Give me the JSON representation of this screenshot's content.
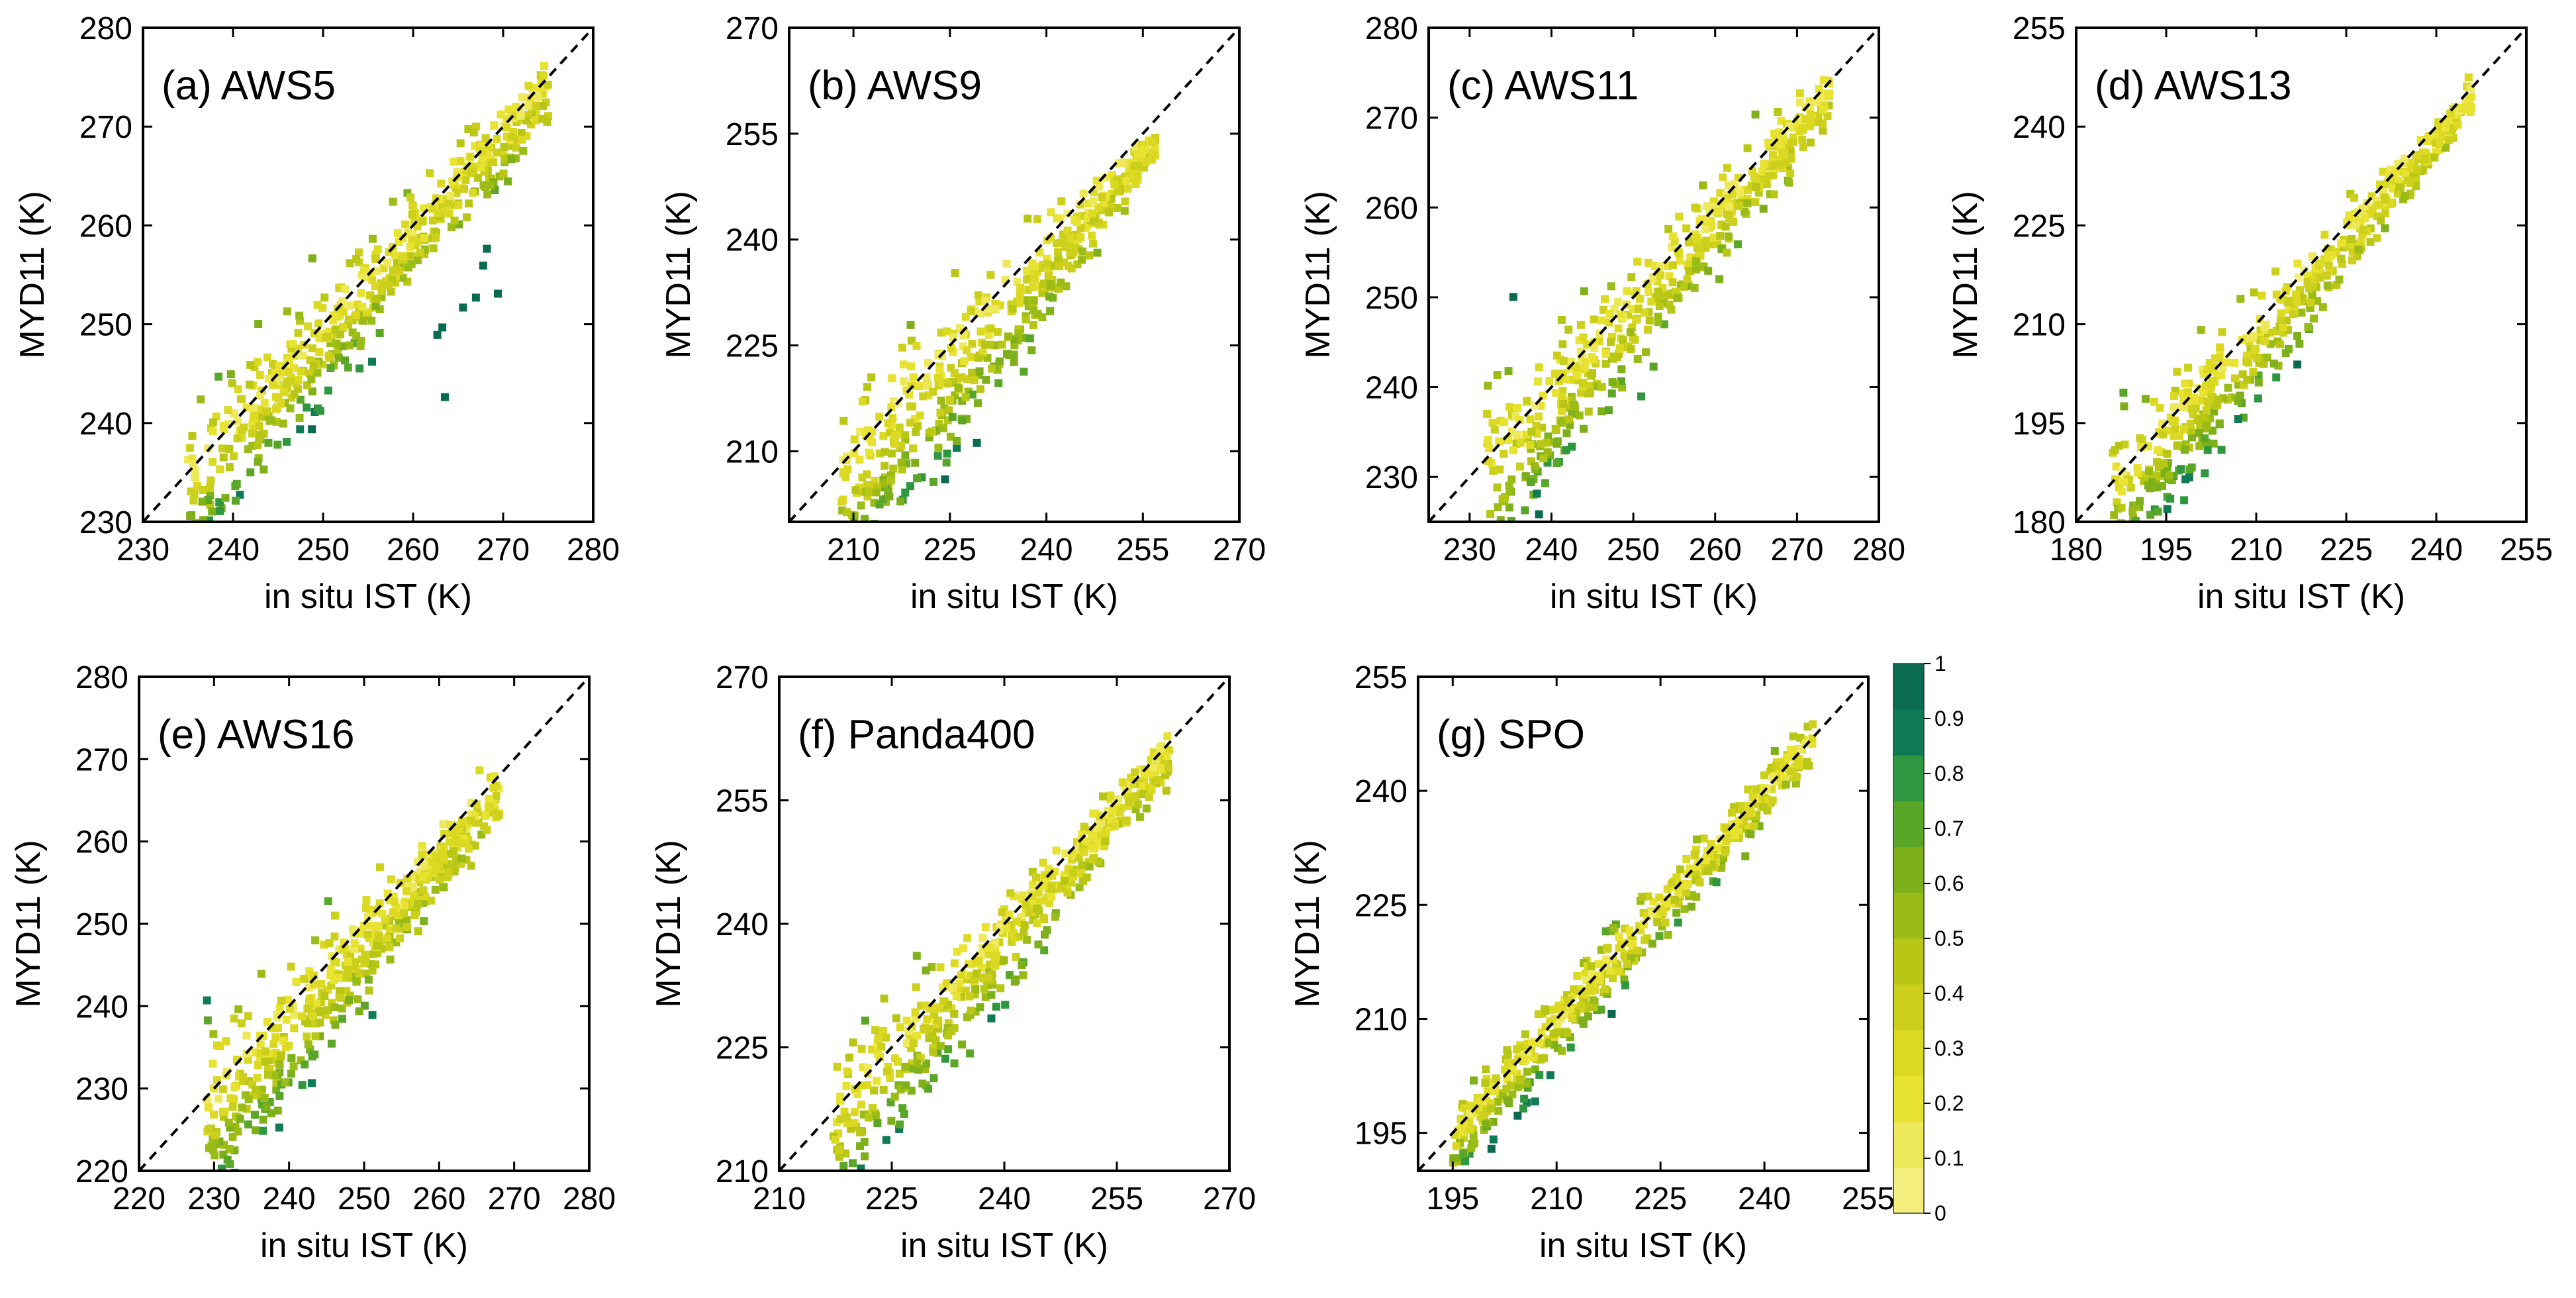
{
  "chart_data": [
    {
      "type": "scatter",
      "title": "(a) AWS5",
      "xlabel": "in situ IST (K)",
      "ylabel": "MYD11 (K)",
      "xlim": [
        230,
        280
      ],
      "ylim": [
        230,
        280
      ],
      "xticks": [
        230,
        240,
        250,
        260,
        270,
        280
      ],
      "yticks": [
        230,
        240,
        250,
        260,
        270,
        280
      ],
      "reference_line": "1:1",
      "color_variable_range": [
        0,
        1
      ],
      "points_summary": {
        "x_range": [
          235,
          275
        ],
        "y_range": [
          232,
          273
        ],
        "bias": -2,
        "n_outliers": 8
      }
    },
    {
      "type": "scatter",
      "title": "(b) AWS9",
      "xlabel": "in situ IST (K)",
      "ylabel": "MYD11 (K)",
      "xlim": [
        200,
        270
      ],
      "ylim": [
        200,
        270
      ],
      "xticks": [
        210,
        225,
        240,
        255,
        270
      ],
      "yticks": [
        210,
        225,
        240,
        255,
        270
      ],
      "reference_line": "1:1",
      "color_variable_range": [
        0,
        1
      ],
      "points_summary": {
        "x_range": [
          208,
          257
        ],
        "y_range": [
          202,
          258
        ],
        "bias": -6
      }
    },
    {
      "type": "scatter",
      "title": "(c) AWS11",
      "xlabel": "in situ IST (K)",
      "ylabel": "MYD11 (K)",
      "xlim": [
        225,
        280
      ],
      "ylim": [
        225,
        280
      ],
      "xticks": [
        230,
        240,
        250,
        260,
        270,
        280
      ],
      "yticks": [
        230,
        240,
        250,
        260,
        270,
        280
      ],
      "reference_line": "1:1",
      "color_variable_range": [
        0,
        1
      ],
      "points_summary": {
        "x_range": [
          232,
          274
        ],
        "y_range": [
          228,
          270
        ],
        "bias": -3
      }
    },
    {
      "type": "scatter",
      "title": "(d) AWS13",
      "xlabel": "in situ IST (K)",
      "ylabel": "MYD11 (K)",
      "xlim": [
        180,
        255
      ],
      "ylim": [
        180,
        255
      ],
      "xticks": [
        180,
        195,
        210,
        225,
        240,
        255
      ],
      "yticks": [
        180,
        195,
        210,
        225,
        240,
        255
      ],
      "reference_line": "1:1",
      "color_variable_range": [
        0,
        1
      ],
      "points_summary": {
        "x_range": [
          186,
          246
        ],
        "y_range": [
          185,
          246
        ],
        "bias": -4
      }
    },
    {
      "type": "scatter",
      "title": "(e) AWS16",
      "xlabel": "in situ IST (K)",
      "ylabel": "MYD11 (K)",
      "xlim": [
        220,
        280
      ],
      "ylim": [
        220,
        280
      ],
      "xticks": [
        220,
        230,
        240,
        250,
        260,
        270,
        280
      ],
      "yticks": [
        220,
        230,
        240,
        250,
        260,
        270,
        280
      ],
      "reference_line": "1:1",
      "color_variable_range": [
        0,
        1
      ],
      "points_summary": {
        "x_range": [
          229,
          268
        ],
        "y_range": [
          222,
          268
        ],
        "bias": -4
      }
    },
    {
      "type": "scatter",
      "title": "(f) Panda400",
      "xlabel": "in situ IST (K)",
      "ylabel": "MYD11 (K)",
      "xlim": [
        210,
        270
      ],
      "ylim": [
        210,
        270
      ],
      "xticks": [
        210,
        225,
        240,
        255,
        270
      ],
      "yticks": [
        210,
        225,
        240,
        255,
        270
      ],
      "reference_line": "1:1",
      "color_variable_range": [
        0,
        1
      ],
      "points_summary": {
        "x_range": [
          217,
          262
        ],
        "y_range": [
          215,
          258
        ],
        "bias": -3
      }
    },
    {
      "type": "scatter",
      "title": "(g) SPO",
      "xlabel": "in situ IST (K)",
      "ylabel": "MYD11 (K)",
      "xlim": [
        190,
        255
      ],
      "ylim": [
        190,
        255
      ],
      "xticks": [
        195,
        210,
        225,
        240,
        255
      ],
      "yticks": [
        195,
        210,
        225,
        240,
        255
      ],
      "reference_line": "1:1",
      "color_variable_range": [
        0,
        1
      ],
      "points_summary": {
        "x_range": [
          195,
          247
        ],
        "y_range": [
          192,
          245
        ],
        "bias": -1
      }
    }
  ],
  "colorbar": {
    "ticks": [
      "0",
      "0.1",
      "0.2",
      "0.3",
      "0.4",
      "0.5",
      "0.6",
      "0.7",
      "0.8",
      "0.9",
      "1"
    ],
    "colors": [
      "#F3EE7D",
      "#EEE85B",
      "#E8E231",
      "#DCD923",
      "#CCD01C",
      "#B8C616",
      "#9BBC16",
      "#7DB01A",
      "#5AA629",
      "#2F9740",
      "#0F7A56",
      "#0B6B50"
    ]
  }
}
